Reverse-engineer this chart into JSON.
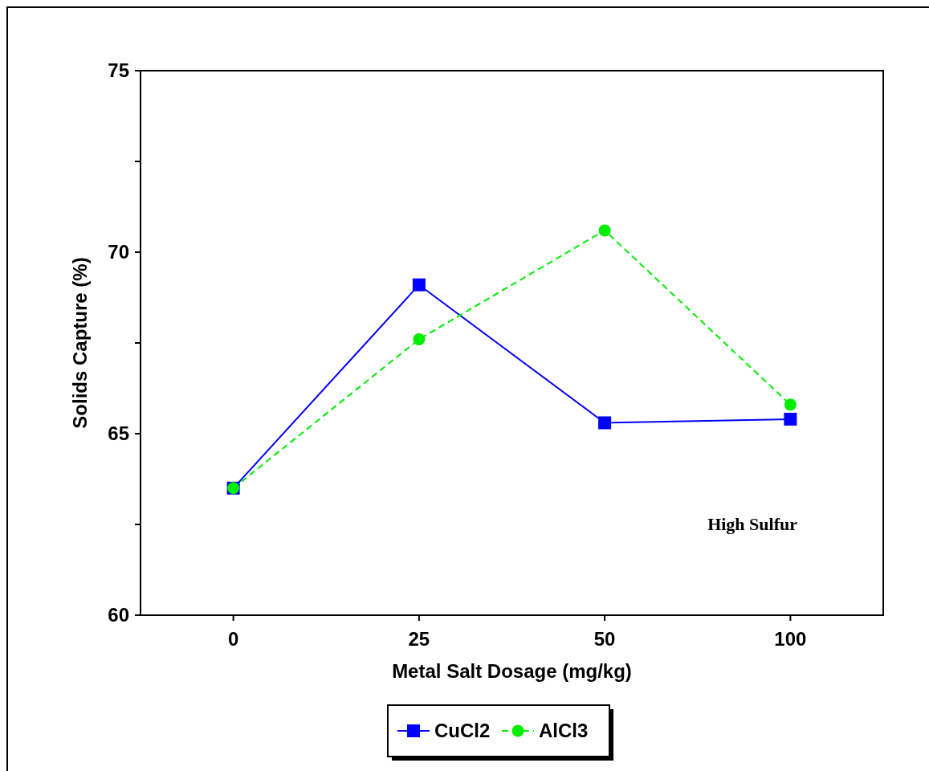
{
  "chart_data": {
    "type": "line",
    "xlabel": "Metal Salt Dosage (mg/kg)",
    "ylabel": "Solids Capture (%)",
    "categories": [
      "0",
      "25",
      "50",
      "100"
    ],
    "ylim": [
      60,
      75
    ],
    "yticks": [
      60,
      {
        "value": 62.5,
        "label": null
      },
      65,
      {
        "value": 67.5,
        "label": null
      },
      70,
      {
        "value": 72.5,
        "label": null
      },
      75
    ],
    "series": [
      {
        "name": "CuCl2",
        "color": "#0000ff",
        "values": [
          63.5,
          69.1,
          65.3,
          65.4
        ],
        "marker": "square",
        "line_style": "solid"
      },
      {
        "name": "AlCl3",
        "color": "#00ee00",
        "values": [
          63.5,
          67.6,
          70.6,
          65.8
        ],
        "marker": "circle",
        "line_style": "dashed"
      }
    ],
    "annotations": [
      "High Sulfur"
    ],
    "grid": false,
    "legend": "bottom"
  }
}
